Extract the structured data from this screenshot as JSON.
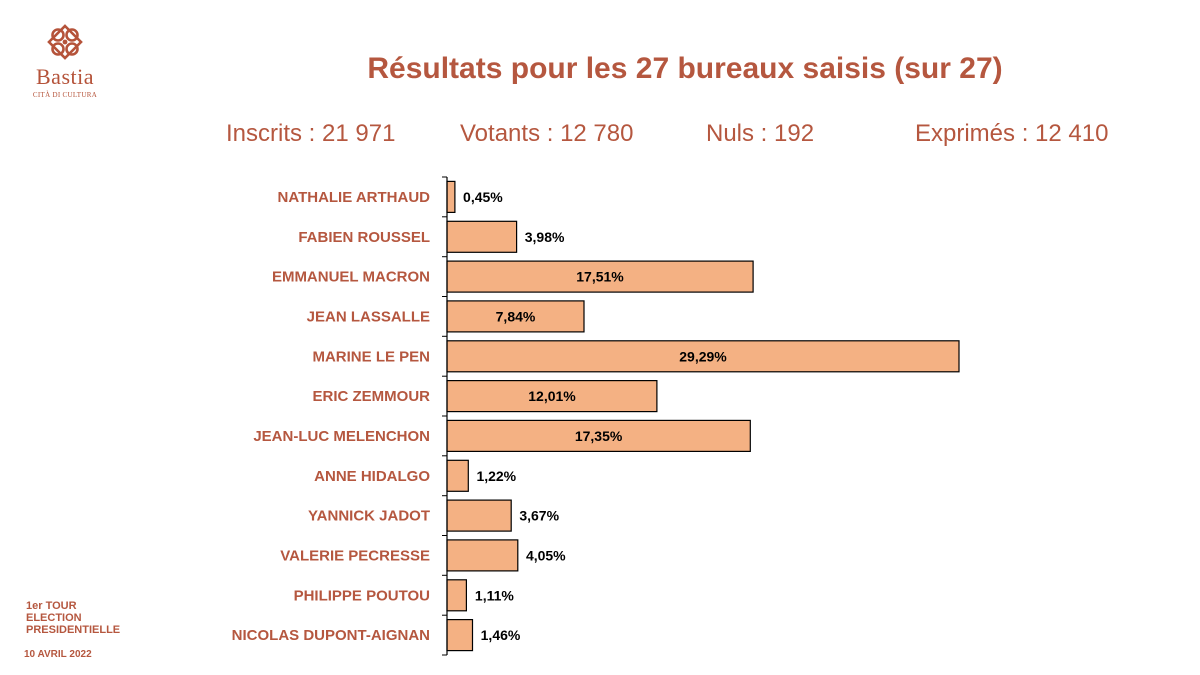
{
  "header": {
    "logo_name": "Bastia",
    "logo_tagline": "CITÀ DI CULTURA",
    "logo_icon": "bastia-knot-icon",
    "title": "Résultats pour les 27 bureaux saisis (sur 27)"
  },
  "stats": {
    "inscrits": "Inscrits : 21 971",
    "votants": "Votants : 12 780",
    "nuls": "Nuls : 192",
    "exprimes": "Exprimés : 12 410"
  },
  "footer": {
    "tour_line1": "1er TOUR",
    "tour_line2": "ELECTION",
    "tour_line3": "PRESIDENTIELLE",
    "date": "10 AVRIL 2022"
  },
  "colors": {
    "accent": "#b5573f",
    "bar_fill": "#f4b183",
    "bar_stroke": "#000000"
  },
  "chart_data": {
    "type": "bar",
    "orientation": "horizontal",
    "categories": [
      "NATHALIE ARTHAUD",
      "FABIEN ROUSSEL",
      "EMMANUEL MACRON",
      "JEAN LASSALLE",
      "MARINE LE PEN",
      "ERIC ZEMMOUR",
      "JEAN-LUC MELENCHON",
      "ANNE HIDALGO",
      "YANNICK JADOT",
      "VALERIE PECRESSE",
      "PHILIPPE POUTOU",
      "NICOLAS DUPONT-AIGNAN"
    ],
    "values": [
      0.45,
      3.98,
      17.51,
      7.84,
      29.29,
      12.01,
      17.35,
      1.22,
      3.67,
      4.05,
      1.11,
      1.46
    ],
    "value_labels": [
      "0,45%",
      "3,98%",
      "17,51%",
      "7,84%",
      "29,29%",
      "12,01%",
      "17,35%",
      "1,22%",
      "3,67%",
      "4,05%",
      "1,11%",
      "1,46%"
    ],
    "unit": "%",
    "xlim": [
      0,
      29.29
    ],
    "grid": false,
    "legend": "none"
  }
}
